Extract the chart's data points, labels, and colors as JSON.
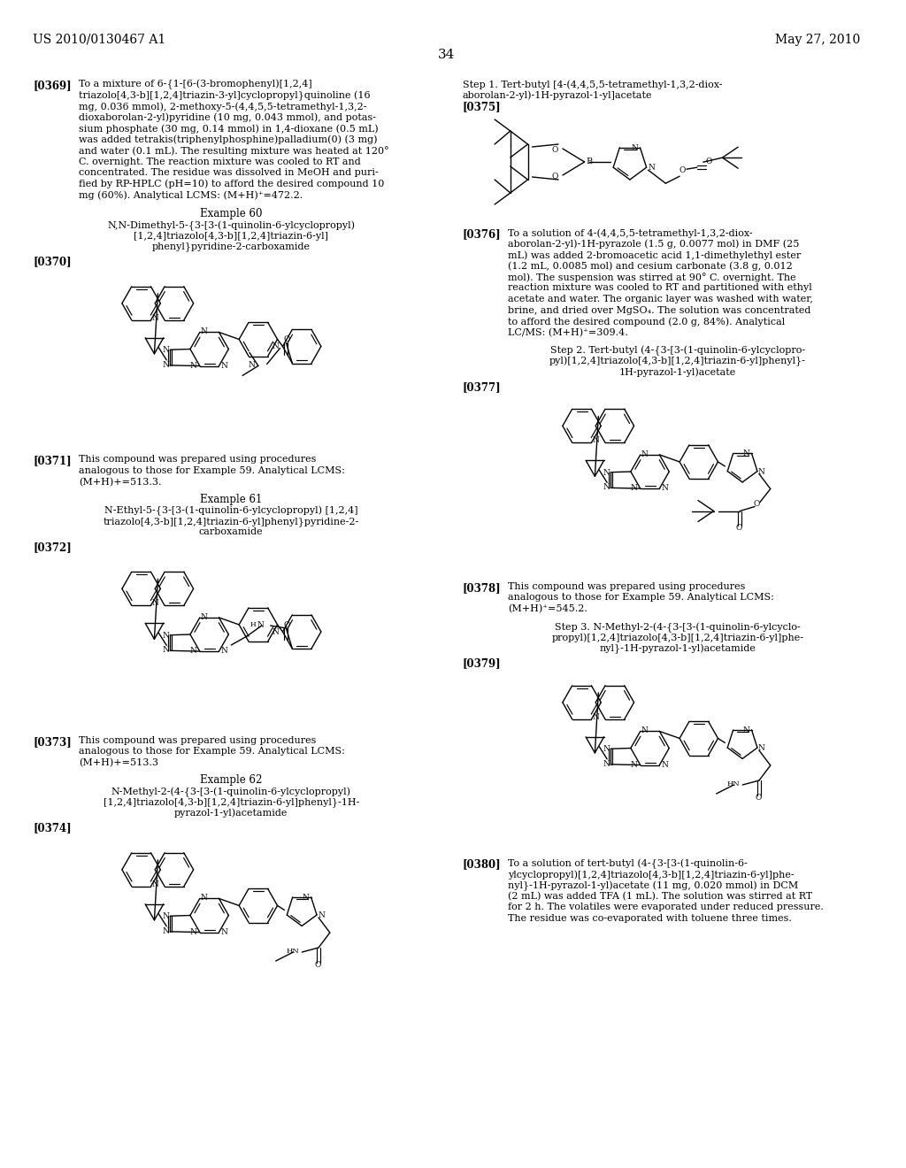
{
  "background": "#ffffff",
  "header_left": "US 2010/0130467 A1",
  "header_right": "May 27, 2010",
  "page_number": "34"
}
